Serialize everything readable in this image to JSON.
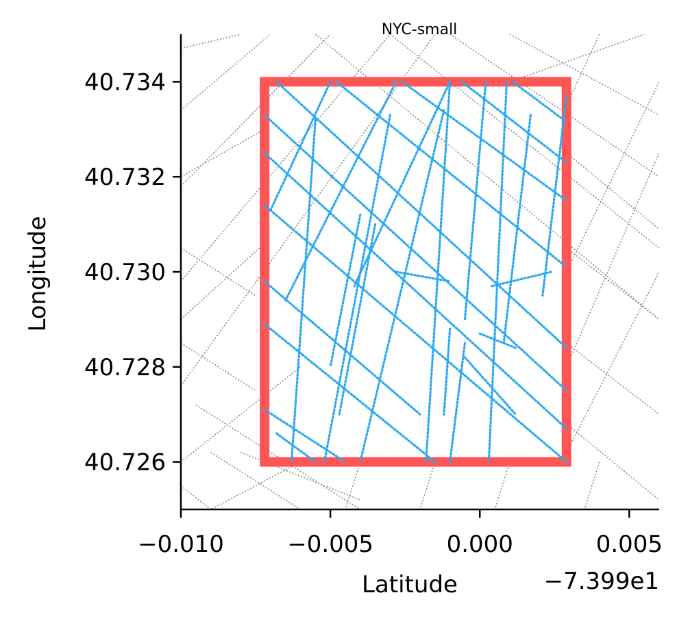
{
  "chart_data": {
    "type": "scatter",
    "title": "NYC-small",
    "xlabel": "Latitude",
    "ylabel": "Longitude",
    "x_offset_label": "−7.399e1",
    "x_offset": -73.99,
    "xlim": [
      -0.01,
      0.006
    ],
    "ylim": [
      40.725,
      40.735
    ],
    "x_ticks": [
      -0.01,
      -0.005,
      0.0,
      0.005
    ],
    "x_tick_labels": [
      "−0.010",
      "−0.005",
      "0.000",
      "0.005"
    ],
    "y_ticks": [
      40.726,
      40.728,
      40.73,
      40.732,
      40.734
    ],
    "y_tick_labels": [
      "40.726",
      "40.728",
      "40.730",
      "40.732",
      "40.734"
    ],
    "bounding_box": {
      "x_min": -0.0072,
      "x_max": 0.0029,
      "y_min": 40.726,
      "y_max": 40.734,
      "color": "#ff5252"
    },
    "background_road_color": "#8a8a8a",
    "point_color": "#29a8f0",
    "grid": false,
    "background_roads": [
      [
        [
          -0.01,
          40.7347
        ],
        [
          -0.008,
          40.735
        ]
      ],
      [
        [
          -0.01,
          40.7334
        ],
        [
          -0.007,
          40.735
        ]
      ],
      [
        [
          -0.01,
          40.7318
        ],
        [
          -0.005,
          40.735
        ]
      ],
      [
        [
          -0.01,
          40.7298
        ],
        [
          -0.003,
          40.735
        ]
      ],
      [
        [
          -0.01,
          40.7276
        ],
        [
          -0.0015,
          40.735
        ]
      ],
      [
        [
          -0.01,
          40.726
        ],
        [
          -0.006,
          40.728
        ]
      ],
      [
        [
          -0.01,
          40.729
        ],
        [
          -0.0072,
          40.7306
        ]
      ],
      [
        [
          -0.01,
          40.732
        ],
        [
          -0.0072,
          40.733
        ]
      ],
      [
        [
          -0.0055,
          40.735
        ],
        [
          0.006,
          40.729
        ]
      ],
      [
        [
          -0.003,
          40.735
        ],
        [
          0.006,
          40.7305
        ]
      ],
      [
        [
          -0.001,
          40.735
        ],
        [
          0.006,
          40.732
        ]
      ],
      [
        [
          0.001,
          40.735
        ],
        [
          0.006,
          40.7333
        ]
      ],
      [
        [
          0.0029,
          40.7325
        ],
        [
          0.006,
          40.7309
        ]
      ],
      [
        [
          0.0029,
          40.7305
        ],
        [
          0.006,
          40.729
        ]
      ],
      [
        [
          0.0029,
          40.7285
        ],
        [
          0.006,
          40.727
        ]
      ],
      [
        [
          0.0029,
          40.7268
        ],
        [
          0.006,
          40.7252
        ]
      ],
      [
        [
          -0.0095,
          40.7272
        ],
        [
          -0.004,
          40.725
        ]
      ],
      [
        [
          -0.009,
          40.7262
        ],
        [
          -0.006,
          40.725
        ]
      ],
      [
        [
          -0.008,
          40.7262
        ],
        [
          -0.004,
          40.7252
        ]
      ],
      [
        [
          -0.006,
          40.726
        ],
        [
          -0.009,
          40.725
        ]
      ],
      [
        [
          -0.004,
          40.726
        ],
        [
          -0.0045,
          40.725
        ]
      ],
      [
        [
          -0.0015,
          40.726
        ],
        [
          -0.002,
          40.725
        ]
      ],
      [
        [
          0.001,
          40.726
        ],
        [
          0.0005,
          40.725
        ]
      ],
      [
        [
          0.004,
          40.726
        ],
        [
          0.0035,
          40.725
        ]
      ],
      [
        [
          0.001,
          40.734
        ],
        [
          0.0055,
          40.735
        ]
      ],
      [
        [
          0.0029,
          40.7335
        ],
        [
          0.004,
          40.735
        ]
      ],
      [
        [
          0.0029,
          40.73
        ],
        [
          0.006,
          40.734
        ]
      ],
      [
        [
          0.0029,
          40.728
        ],
        [
          0.006,
          40.7325
        ]
      ],
      [
        [
          0.0029,
          40.7262
        ],
        [
          0.006,
          40.73
        ]
      ],
      [
        [
          -0.01,
          40.7305
        ],
        [
          -0.0075,
          40.7295
        ]
      ],
      [
        [
          -0.01,
          40.7285
        ],
        [
          -0.0075,
          40.7275
        ]
      ],
      [
        [
          -0.01,
          40.7255
        ],
        [
          -0.009,
          40.725
        ]
      ]
    ],
    "street_segments": [
      [
        [
          -0.0068,
          40.734
        ],
        [
          0.0029,
          40.7284
        ]
      ],
      [
        [
          -0.0072,
          40.7333
        ],
        [
          0.0029,
          40.7275
        ]
      ],
      [
        [
          -0.0072,
          40.7325
        ],
        [
          0.0029,
          40.7267
        ]
      ],
      [
        [
          -0.0072,
          40.7314
        ],
        [
          0.0029,
          40.726
        ]
      ],
      [
        [
          -0.0072,
          40.7298
        ],
        [
          -0.002,
          40.727
        ]
      ],
      [
        [
          -0.0072,
          40.7289
        ],
        [
          -0.0015,
          40.726
        ]
      ],
      [
        [
          -0.0072,
          40.7271
        ],
        [
          -0.0045,
          40.726
        ]
      ],
      [
        [
          -0.0068,
          40.7266
        ],
        [
          -0.0055,
          40.726
        ]
      ],
      [
        [
          -0.0048,
          40.734
        ],
        [
          0.0029,
          40.7301
        ]
      ],
      [
        [
          -0.0026,
          40.734
        ],
        [
          0.0029,
          40.7315
        ]
      ],
      [
        [
          -0.0006,
          40.734
        ],
        [
          0.0029,
          40.7323
        ]
      ],
      [
        [
          0.0011,
          40.734
        ],
        [
          0.0028,
          40.7332
        ]
      ],
      [
        [
          -0.005,
          40.734
        ],
        [
          -0.007,
          40.7313
        ]
      ],
      [
        [
          -0.0028,
          40.734
        ],
        [
          -0.0065,
          40.7294
        ]
      ],
      [
        [
          -0.001,
          40.734
        ],
        [
          -0.0042,
          40.7297
        ]
      ],
      [
        [
          -0.0055,
          40.7332
        ],
        [
          -0.0063,
          40.726
        ]
      ],
      [
        [
          -0.003,
          40.7333
        ],
        [
          -0.0052,
          40.726
        ]
      ],
      [
        [
          -0.0012,
          40.7334
        ],
        [
          -0.004,
          40.726
        ]
      ],
      [
        [
          -0.001,
          40.734
        ],
        [
          -0.0018,
          40.726
        ]
      ],
      [
        [
          0.0002,
          40.734
        ],
        [
          -0.0005,
          40.729
        ]
      ],
      [
        [
          0.0009,
          40.734
        ],
        [
          0.0003,
          40.726
        ]
      ],
      [
        [
          0.0017,
          40.7333
        ],
        [
          0.0008,
          40.7285
        ]
      ],
      [
        [
          0.0029,
          40.7337
        ],
        [
          0.0021,
          40.7295
        ]
      ],
      [
        [
          -0.0028,
          40.73
        ],
        [
          -0.001,
          40.7298
        ]
      ],
      [
        [
          0.0004,
          40.7297
        ],
        [
          0.0024,
          40.73
        ]
      ],
      [
        [
          -0.004,
          40.7312
        ],
        [
          -0.005,
          40.728
        ]
      ],
      [
        [
          -0.0035,
          40.731
        ],
        [
          -0.0047,
          40.727
        ]
      ],
      [
        [
          -0.001,
          40.7288
        ],
        [
          -0.0012,
          40.727
        ]
      ],
      [
        [
          -0.0005,
          40.7285
        ],
        [
          -0.001,
          40.726
        ]
      ],
      [
        [
          0.0,
          40.7287
        ],
        [
          0.0012,
          40.7284
        ]
      ],
      [
        [
          -0.0005,
          40.7282
        ],
        [
          0.0012,
          40.727
        ]
      ]
    ]
  }
}
